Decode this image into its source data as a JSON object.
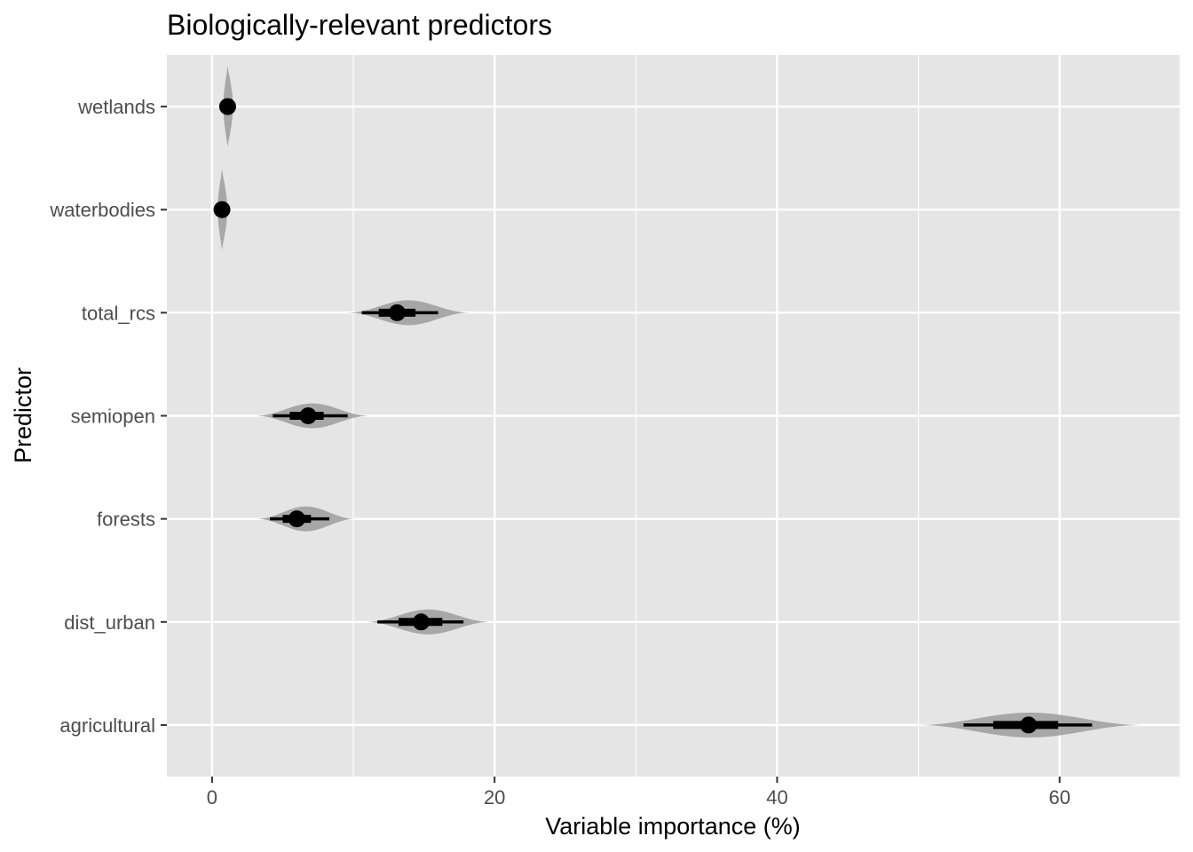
{
  "chart_data": {
    "type": "violin",
    "title": "Biologically-relevant predictors",
    "xlabel": "Variable importance (%)",
    "ylabel": "Predictor",
    "xlim": [
      -3.2,
      68.5
    ],
    "x_ticks": [
      0,
      20,
      40,
      60
    ],
    "x_tick_labels": [
      "0",
      "20",
      "40",
      "60"
    ],
    "minor_x_gridlines": [
      10,
      30,
      50
    ],
    "grid": true,
    "colors": {
      "panel_background": "#e5e5e5",
      "gridline": "#ffffff",
      "violin_fill": "#a0a0a0",
      "interval": "#000000",
      "point": "#000000"
    },
    "categories": [
      "wetlands",
      "waterbodies",
      "total_rcs",
      "semiopen",
      "forests",
      "dist_urban",
      "agricultural"
    ],
    "series": [
      {
        "category": "wetlands",
        "point": 1.1,
        "interval_66": [
          0.9,
          1.3
        ],
        "interval_95": [
          0.7,
          1.6
        ],
        "density_range": [
          0.4,
          2.1
        ]
      },
      {
        "category": "waterbodies",
        "point": 0.7,
        "interval_66": [
          0.5,
          0.9
        ],
        "interval_95": [
          0.3,
          1.2
        ],
        "density_range": [
          0.0,
          1.7
        ]
      },
      {
        "category": "total_rcs",
        "point": 13.1,
        "interval_66": [
          11.8,
          14.4
        ],
        "interval_95": [
          10.6,
          16.0
        ],
        "density_range": [
          9.5,
          18.3
        ]
      },
      {
        "category": "semiopen",
        "point": 6.8,
        "interval_66": [
          5.5,
          7.9
        ],
        "interval_95": [
          4.3,
          9.6
        ],
        "density_range": [
          3.0,
          11.2
        ]
      },
      {
        "category": "forests",
        "point": 6.0,
        "interval_66": [
          5.0,
          7.0
        ],
        "interval_95": [
          4.1,
          8.3
        ],
        "density_range": [
          3.1,
          10.2
        ]
      },
      {
        "category": "dist_urban",
        "point": 14.8,
        "interval_66": [
          13.2,
          16.3
        ],
        "interval_95": [
          11.7,
          17.8
        ],
        "density_range": [
          10.8,
          19.8
        ]
      },
      {
        "category": "agricultural",
        "point": 57.8,
        "interval_66": [
          55.3,
          59.9
        ],
        "interval_95": [
          53.2,
          62.3
        ],
        "density_range": [
          49.8,
          66.0
        ]
      }
    ]
  }
}
